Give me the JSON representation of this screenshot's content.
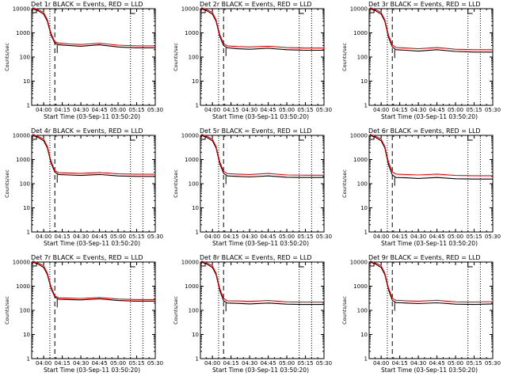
{
  "chart_data": [
    {
      "type": "line",
      "title": "Det 1r BLACK = Events, RED = LLD",
      "xlabel": "Start Time (03-Sep-11 03:50:20)",
      "ylabel": "Counts/sec",
      "y_scale": "log",
      "ylim": [
        1,
        10000
      ],
      "xlim": [
        "03:50:20",
        "05:30:00"
      ],
      "x_tick_labels": [
        "04:00",
        "04:15",
        "04:30",
        "04:45",
        "05:00",
        "05:15",
        "05:30"
      ],
      "y_tick_labels": [
        "1",
        "10",
        "100",
        "1000",
        "10000"
      ],
      "vertical_lines": [
        {
          "style": "dotted",
          "x": "04:05"
        },
        {
          "style": "dashed",
          "x": "04:09"
        },
        {
          "style": "dotted",
          "x": "05:10"
        },
        {
          "style": "dotted",
          "x": "05:20"
        }
      ],
      "series": [
        {
          "name": "Events",
          "color": "#000000",
          "x": [
            "03:51",
            "03:55",
            "04:00",
            "04:03",
            "04:06",
            "04:09",
            "04:12",
            "04:20",
            "04:30",
            "04:45",
            "05:00",
            "05:15",
            "05:30"
          ],
          "y": [
            10000,
            8500,
            6000,
            3000,
            800,
            380,
            320,
            300,
            280,
            320,
            260,
            240,
            240
          ]
        },
        {
          "name": "LLD",
          "color": "#ff0000",
          "x": [
            "03:51",
            "03:55",
            "04:00",
            "04:03",
            "04:06",
            "04:09",
            "04:12",
            "04:20",
            "04:30",
            "04:45",
            "05:00",
            "05:15",
            "05:30"
          ],
          "y": [
            11000,
            9500,
            7000,
            3500,
            950,
            430,
            380,
            350,
            330,
            370,
            310,
            290,
            290
          ]
        }
      ]
    },
    {
      "type": "line",
      "title": "Det 2r BLACK = Events, RED = LLD",
      "xlabel": "Start Time (03-Sep-11 03:50:20)",
      "ylabel": "Counts/sec",
      "y_scale": "log",
      "ylim": [
        1,
        10000
      ],
      "xlim": [
        "03:50:20",
        "05:30:00"
      ],
      "x_tick_labels": [
        "04:00",
        "04:15",
        "04:30",
        "04:45",
        "05:00",
        "05:15",
        "05:30"
      ],
      "y_tick_labels": [
        "1",
        "10",
        "100",
        "1000",
        "10000"
      ],
      "vertical_lines": [
        {
          "style": "dotted",
          "x": "04:05"
        },
        {
          "style": "dashed",
          "x": "04:09"
        },
        {
          "style": "dotted",
          "x": "05:10"
        },
        {
          "style": "dotted",
          "x": "05:20"
        }
      ],
      "series": [
        {
          "name": "Events",
          "color": "#000000",
          "x": [
            "03:51",
            "03:55",
            "04:00",
            "04:03",
            "04:06",
            "04:09",
            "04:12",
            "04:20",
            "04:30",
            "04:45",
            "05:00",
            "05:15",
            "05:30"
          ],
          "y": [
            10000,
            8500,
            6000,
            3000,
            700,
            300,
            240,
            220,
            210,
            230,
            200,
            190,
            190
          ]
        },
        {
          "name": "LLD",
          "color": "#ff0000",
          "x": [
            "03:51",
            "03:55",
            "04:00",
            "04:03",
            "04:06",
            "04:09",
            "04:12",
            "04:20",
            "04:30",
            "04:45",
            "05:00",
            "05:15",
            "05:30"
          ],
          "y": [
            11000,
            9500,
            7000,
            3500,
            850,
            360,
            290,
            270,
            260,
            280,
            245,
            235,
            235
          ]
        }
      ]
    },
    {
      "type": "line",
      "title": "Det 3r BLACK = Events, RED = LLD",
      "xlabel": "Start Time (03-Sep-11 03:50:20)",
      "ylabel": "Counts/sec",
      "y_scale": "log",
      "ylim": [
        1,
        10000
      ],
      "xlim": [
        "03:50:20",
        "05:30:00"
      ],
      "x_tick_labels": [
        "04:00",
        "04:15",
        "04:30",
        "04:45",
        "05:00",
        "05:15",
        "05:30"
      ],
      "y_tick_labels": [
        "1",
        "10",
        "100",
        "1000",
        "10000"
      ],
      "vertical_lines": [
        {
          "style": "dotted",
          "x": "04:05"
        },
        {
          "style": "dashed",
          "x": "04:09"
        },
        {
          "style": "dotted",
          "x": "05:10"
        },
        {
          "style": "dotted",
          "x": "05:20"
        }
      ],
      "series": [
        {
          "name": "Events",
          "color": "#000000",
          "x": [
            "03:51",
            "03:55",
            "04:00",
            "04:03",
            "04:06",
            "04:09",
            "04:12",
            "04:20",
            "04:30",
            "04:45",
            "05:00",
            "05:15",
            "05:30"
          ],
          "y": [
            10000,
            8500,
            6000,
            3000,
            650,
            260,
            200,
            190,
            175,
            200,
            170,
            160,
            160
          ]
        },
        {
          "name": "LLD",
          "color": "#ff0000",
          "x": [
            "03:51",
            "03:55",
            "04:00",
            "04:03",
            "04:06",
            "04:09",
            "04:12",
            "04:20",
            "04:30",
            "04:45",
            "05:00",
            "05:15",
            "05:30"
          ],
          "y": [
            11000,
            9500,
            7000,
            3500,
            800,
            320,
            250,
            235,
            220,
            245,
            210,
            200,
            200
          ]
        }
      ]
    },
    {
      "type": "line",
      "title": "Det 4r BLACK = Events, RED = LLD",
      "xlabel": "Start Time (03-Sep-11 03:50:20)",
      "ylabel": "Counts/sec",
      "y_scale": "log",
      "ylim": [
        1,
        10000
      ],
      "xlim": [
        "03:50:20",
        "05:30:00"
      ],
      "x_tick_labels": [
        "04:00",
        "04:15",
        "04:30",
        "04:45",
        "05:00",
        "05:15",
        "05:30"
      ],
      "y_tick_labels": [
        "1",
        "10",
        "100",
        "1000",
        "10000"
      ],
      "vertical_lines": [
        {
          "style": "dotted",
          "x": "04:05"
        },
        {
          "style": "dashed",
          "x": "04:09"
        },
        {
          "style": "dotted",
          "x": "05:10"
        },
        {
          "style": "dotted",
          "x": "05:20"
        }
      ],
      "series": [
        {
          "name": "Events",
          "color": "#000000",
          "x": [
            "03:51",
            "03:55",
            "04:00",
            "04:03",
            "04:06",
            "04:09",
            "04:12",
            "04:20",
            "04:30",
            "04:45",
            "05:00",
            "05:15",
            "05:30"
          ],
          "y": [
            10000,
            8500,
            6000,
            3000,
            700,
            300,
            240,
            230,
            220,
            240,
            210,
            200,
            200
          ]
        },
        {
          "name": "LLD",
          "color": "#ff0000",
          "x": [
            "03:51",
            "03:55",
            "04:00",
            "04:03",
            "04:06",
            "04:09",
            "04:12",
            "04:20",
            "04:30",
            "04:45",
            "05:00",
            "05:15",
            "05:30"
          ],
          "y": [
            11000,
            9500,
            7000,
            3500,
            850,
            350,
            285,
            275,
            265,
            290,
            255,
            245,
            245
          ]
        }
      ]
    },
    {
      "type": "line",
      "title": "Det 5r BLACK = Events, RED = LLD",
      "xlabel": "Start Time (03-Sep-11 03:50:20)",
      "ylabel": "Counts/sec",
      "y_scale": "log",
      "ylim": [
        1,
        10000
      ],
      "xlim": [
        "03:50:20",
        "05:30:00"
      ],
      "x_tick_labels": [
        "04:00",
        "04:15",
        "04:30",
        "04:45",
        "05:00",
        "05:15",
        "05:30"
      ],
      "y_tick_labels": [
        "1",
        "10",
        "100",
        "1000",
        "10000"
      ],
      "vertical_lines": [
        {
          "style": "dotted",
          "x": "04:05"
        },
        {
          "style": "dashed",
          "x": "04:09"
        },
        {
          "style": "dotted",
          "x": "05:10"
        },
        {
          "style": "dotted",
          "x": "05:20"
        }
      ],
      "series": [
        {
          "name": "Events",
          "color": "#000000",
          "x": [
            "03:51",
            "03:55",
            "04:00",
            "04:03",
            "04:06",
            "04:09",
            "04:12",
            "04:20",
            "04:30",
            "04:45",
            "05:00",
            "05:15",
            "05:30"
          ],
          "y": [
            10000,
            8500,
            6000,
            3000,
            650,
            270,
            210,
            200,
            190,
            210,
            185,
            180,
            180
          ]
        },
        {
          "name": "LLD",
          "color": "#ff0000",
          "x": [
            "03:51",
            "03:55",
            "04:00",
            "04:03",
            "04:06",
            "04:09",
            "04:12",
            "04:20",
            "04:30",
            "04:45",
            "05:00",
            "05:15",
            "05:30"
          ],
          "y": [
            11000,
            9500,
            7000,
            3500,
            800,
            330,
            260,
            250,
            240,
            265,
            230,
            225,
            225
          ]
        }
      ]
    },
    {
      "type": "line",
      "title": "Det 6r BLACK = Events, RED = LLD",
      "xlabel": "Start Time (03-Sep-11 03:50:20)",
      "ylabel": "Counts/sec",
      "y_scale": "log",
      "ylim": [
        1,
        10000
      ],
      "xlim": [
        "03:50:20",
        "05:30:00"
      ],
      "x_tick_labels": [
        "04:00",
        "04:15",
        "04:30",
        "04:45",
        "05:00",
        "05:15",
        "05:30"
      ],
      "y_tick_labels": [
        "1",
        "10",
        "100",
        "1000",
        "10000"
      ],
      "vertical_lines": [
        {
          "style": "dotted",
          "x": "04:05"
        },
        {
          "style": "dashed",
          "x": "04:09"
        },
        {
          "style": "dotted",
          "x": "05:10"
        },
        {
          "style": "dotted",
          "x": "05:20"
        }
      ],
      "series": [
        {
          "name": "Events",
          "color": "#000000",
          "x": [
            "03:51",
            "03:55",
            "04:00",
            "04:03",
            "04:06",
            "04:09",
            "04:12",
            "04:20",
            "04:30",
            "04:45",
            "05:00",
            "05:15",
            "05:30"
          ],
          "y": [
            10000,
            8500,
            6000,
            3000,
            600,
            230,
            180,
            175,
            165,
            180,
            160,
            155,
            155
          ]
        },
        {
          "name": "LLD",
          "color": "#ff0000",
          "x": [
            "03:51",
            "03:55",
            "04:00",
            "04:03",
            "04:06",
            "04:09",
            "04:12",
            "04:20",
            "04:30",
            "04:45",
            "05:00",
            "05:15",
            "05:30"
          ],
          "y": [
            11000,
            9500,
            7000,
            3500,
            780,
            310,
            250,
            240,
            230,
            250,
            220,
            215,
            215
          ]
        }
      ]
    },
    {
      "type": "line",
      "title": "Det 7r BLACK = Events, RED = LLD",
      "xlabel": "Start Time (03-Sep-11 03:50:20)",
      "ylabel": "Counts/sec",
      "y_scale": "log",
      "ylim": [
        1,
        10000
      ],
      "xlim": [
        "03:50:20",
        "05:30:00"
      ],
      "x_tick_labels": [
        "04:00",
        "04:15",
        "04:30",
        "04:45",
        "05:00",
        "05:15",
        "05:30"
      ],
      "y_tick_labels": [
        "1",
        "10",
        "100",
        "1000",
        "10000"
      ],
      "vertical_lines": [
        {
          "style": "dotted",
          "x": "04:05"
        },
        {
          "style": "dashed",
          "x": "04:09"
        },
        {
          "style": "dotted",
          "x": "05:10"
        },
        {
          "style": "dotted",
          "x": "05:20"
        }
      ],
      "series": [
        {
          "name": "Events",
          "color": "#000000",
          "x": [
            "03:51",
            "03:55",
            "04:00",
            "04:03",
            "04:06",
            "04:09",
            "04:12",
            "04:20",
            "04:30",
            "04:45",
            "05:00",
            "05:15",
            "05:30"
          ],
          "y": [
            10000,
            8500,
            6000,
            3000,
            800,
            360,
            290,
            280,
            270,
            300,
            255,
            240,
            240
          ]
        },
        {
          "name": "LLD",
          "color": "#ff0000",
          "x": [
            "03:51",
            "03:55",
            "04:00",
            "04:03",
            "04:06",
            "04:09",
            "04:12",
            "04:20",
            "04:30",
            "04:45",
            "05:00",
            "05:15",
            "05:30"
          ],
          "y": [
            11000,
            9500,
            7000,
            3500,
            950,
            410,
            330,
            320,
            310,
            340,
            295,
            280,
            280
          ]
        }
      ]
    },
    {
      "type": "line",
      "title": "Det 8r BLACK = Events, RED = LLD",
      "xlabel": "Start Time (03-Sep-11 03:50:20)",
      "ylabel": "Counts/sec",
      "y_scale": "log",
      "ylim": [
        1,
        10000
      ],
      "xlim": [
        "03:50:20",
        "05:30:00"
      ],
      "x_tick_labels": [
        "04:00",
        "04:15",
        "04:30",
        "04:45",
        "05:00",
        "05:15",
        "05:30"
      ],
      "y_tick_labels": [
        "1",
        "10",
        "100",
        "1000",
        "10000"
      ],
      "vertical_lines": [
        {
          "style": "dotted",
          "x": "04:05"
        },
        {
          "style": "dashed",
          "x": "04:09"
        },
        {
          "style": "dotted",
          "x": "05:10"
        },
        {
          "style": "dotted",
          "x": "05:20"
        }
      ],
      "series": [
        {
          "name": "Events",
          "color": "#000000",
          "x": [
            "03:51",
            "03:55",
            "04:00",
            "04:03",
            "04:06",
            "04:09",
            "04:12",
            "04:20",
            "04:30",
            "04:45",
            "05:00",
            "05:15",
            "05:30"
          ],
          "y": [
            10000,
            8500,
            6000,
            3000,
            650,
            250,
            200,
            195,
            185,
            200,
            180,
            175,
            175
          ]
        },
        {
          "name": "LLD",
          "color": "#ff0000",
          "x": [
            "03:51",
            "03:55",
            "04:00",
            "04:03",
            "04:06",
            "04:09",
            "04:12",
            "04:20",
            "04:30",
            "04:45",
            "05:00",
            "05:15",
            "05:30"
          ],
          "y": [
            11000,
            9500,
            7000,
            3500,
            800,
            310,
            250,
            245,
            235,
            255,
            225,
            220,
            220
          ]
        }
      ]
    },
    {
      "type": "line",
      "title": "Det 9r BLACK = Events, RED = LLD",
      "xlabel": "Start Time (03-Sep-11 03:50:20)",
      "ylabel": "Counts/sec",
      "y_scale": "log",
      "ylim": [
        1,
        10000
      ],
      "xlim": [
        "03:50:20",
        "05:30:00"
      ],
      "x_tick_labels": [
        "04:00",
        "04:15",
        "04:30",
        "04:45",
        "05:00",
        "05:15",
        "05:30"
      ],
      "y_tick_labels": [
        "1",
        "10",
        "100",
        "1000",
        "10000"
      ],
      "vertical_lines": [
        {
          "style": "dotted",
          "x": "04:05"
        },
        {
          "style": "dashed",
          "x": "04:09"
        },
        {
          "style": "dotted",
          "x": "05:10"
        },
        {
          "style": "dotted",
          "x": "05:20"
        }
      ],
      "series": [
        {
          "name": "Events",
          "color": "#000000",
          "x": [
            "03:51",
            "03:55",
            "04:00",
            "04:03",
            "04:06",
            "04:09",
            "04:12",
            "04:20",
            "04:30",
            "04:45",
            "05:00",
            "05:15",
            "05:30"
          ],
          "y": [
            10000,
            8500,
            6000,
            3000,
            700,
            260,
            210,
            200,
            190,
            205,
            180,
            175,
            185
          ]
        },
        {
          "name": "LLD",
          "color": "#ff0000",
          "x": [
            "03:51",
            "03:55",
            "04:00",
            "04:03",
            "04:06",
            "04:09",
            "04:12",
            "04:20",
            "04:30",
            "04:45",
            "05:00",
            "05:15",
            "05:30"
          ],
          "y": [
            11000,
            9500,
            7000,
            3500,
            850,
            320,
            260,
            250,
            240,
            260,
            225,
            220,
            230
          ]
        }
      ]
    }
  ]
}
